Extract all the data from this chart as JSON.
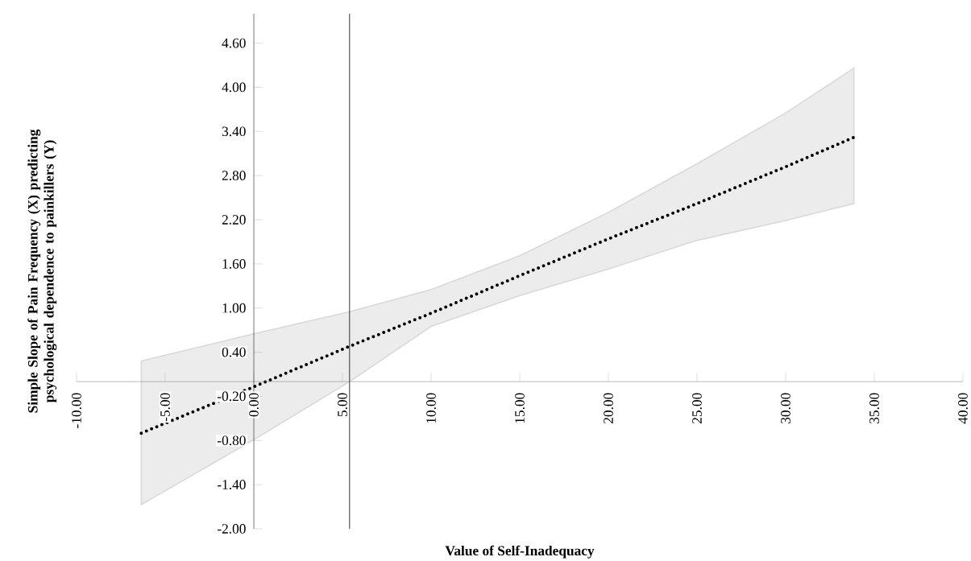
{
  "chart_data": {
    "type": "line",
    "xlabel": "Value of Self-Inadequacy",
    "ylabel": "Simple Slope of Pain Frequency (X) predicting psychological dependence to painkillers (Y)",
    "xlim": [
      -10,
      40
    ],
    "ylim": [
      -2,
      5
    ],
    "xticks": [
      {
        "value": -10,
        "label": "-10.00"
      },
      {
        "value": -5,
        "label": "-5.00"
      },
      {
        "value": 0,
        "label": "0.00"
      },
      {
        "value": 5,
        "label": "5.00"
      },
      {
        "value": 10,
        "label": "10.00"
      },
      {
        "value": 15,
        "label": "15.00"
      },
      {
        "value": 20,
        "label": "20.00"
      },
      {
        "value": 25,
        "label": "25.00"
      },
      {
        "value": 30,
        "label": "30.00"
      },
      {
        "value": 35,
        "label": "35.00"
      },
      {
        "value": 40,
        "label": "40.00"
      }
    ],
    "yticks": [
      {
        "value": -2,
        "label": "-2.00"
      },
      {
        "value": -1.4,
        "label": "-1.40"
      },
      {
        "value": -0.8,
        "label": "-0.80"
      },
      {
        "value": -0.2,
        "label": "-0.20"
      },
      {
        "value": 0.4,
        "label": "0.40"
      },
      {
        "value": 1,
        "label": "1.00"
      },
      {
        "value": 1.6,
        "label": "1.60"
      },
      {
        "value": 2.2,
        "label": "2.20"
      },
      {
        "value": 2.8,
        "label": "2.80"
      },
      {
        "value": 3.4,
        "label": "3.40"
      },
      {
        "value": 4,
        "label": "4.00"
      },
      {
        "value": 4.6,
        "label": "4.60"
      }
    ],
    "series": [
      {
        "color": "#000000",
        "line_style": "dotted",
        "x": [
          -6.35,
          0,
          5.4,
          10,
          15,
          20,
          25,
          30,
          33.85
        ],
        "values": [
          -0.7,
          -0.07,
          0.48,
          0.93,
          1.44,
          1.94,
          2.42,
          2.92,
          3.32
        ],
        "lower": [
          -1.67,
          -0.79,
          0.0,
          0.75,
          1.17,
          1.53,
          1.92,
          2.19,
          2.42
        ],
        "upper": [
          0.28,
          0.65,
          0.95,
          1.25,
          1.71,
          2.3,
          2.96,
          3.65,
          4.26
        ]
      }
    ],
    "ref_lines": [
      {
        "axis": "x",
        "value": 5.4,
        "color": "#000000"
      }
    ],
    "grid": false,
    "legend": false,
    "marker": "none"
  }
}
